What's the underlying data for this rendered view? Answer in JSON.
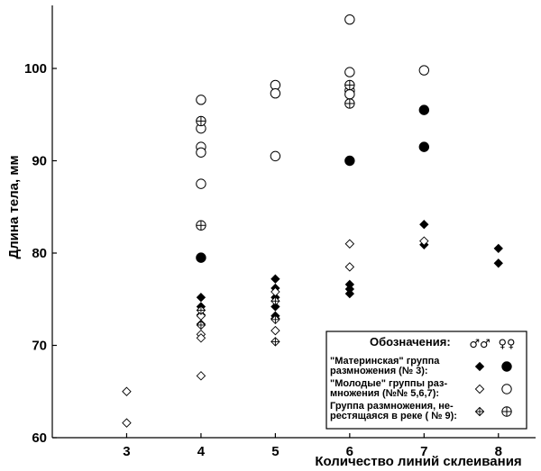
{
  "chart_data": {
    "type": "scatter",
    "title": "",
    "xlabel": "Количество линий склеивания",
    "ylabel": "Длина тела, мм",
    "xlim": [
      2,
      8.5
    ],
    "ylim": [
      60,
      106
    ],
    "xticks": [
      3,
      4,
      5,
      6,
      7,
      8
    ],
    "yticks": [
      60,
      70,
      80,
      90,
      100
    ],
    "grid": false,
    "legend": {
      "placement": "bottom-right",
      "title": "Обозначения:",
      "male_symbol": "♂♂",
      "female_symbol": "♀♀",
      "entries": [
        {
          "lines": [
            "\"Материнская\" группа",
            "размножения (№ 3):"
          ]
        },
        {
          "lines": [
            "\"Молодые\" группы раз-",
            "множения (№№ 5,6,7):"
          ]
        },
        {
          "lines": [
            "Группа размножения, не-",
            "рестящаяся в реке ( № 9):"
          ]
        }
      ]
    },
    "series": [
      {
        "marker": "filled-diamond",
        "points": [
          [
            4,
            75.2
          ],
          [
            4,
            74.2
          ],
          [
            4,
            73.3
          ],
          [
            4,
            72.3
          ],
          [
            5,
            77.2
          ],
          [
            5,
            76.2
          ],
          [
            5,
            75.2
          ],
          [
            5,
            74.2
          ],
          [
            5,
            73.2
          ],
          [
            6,
            76.6
          ],
          [
            6,
            76.1
          ],
          [
            6,
            75.6
          ],
          [
            7,
            83.1
          ],
          [
            7,
            80.9
          ],
          [
            8,
            80.5
          ],
          [
            8,
            78.9
          ]
        ]
      },
      {
        "marker": "filled-circle",
        "points": [
          [
            4,
            79.5
          ],
          [
            6,
            90
          ],
          [
            7,
            95.5
          ],
          [
            7,
            91.5
          ]
        ]
      },
      {
        "marker": "open-diamond",
        "points": [
          [
            3,
            65
          ],
          [
            3,
            61.6
          ],
          [
            4,
            73.2
          ],
          [
            4,
            71.2
          ],
          [
            4,
            70.8
          ],
          [
            4,
            66.7
          ],
          [
            5,
            75.8
          ],
          [
            5,
            72.9
          ],
          [
            5,
            71.6
          ],
          [
            6,
            81
          ],
          [
            6,
            78.5
          ],
          [
            7,
            81.3
          ]
        ]
      },
      {
        "marker": "open-circle",
        "points": [
          [
            4,
            96.6
          ],
          [
            4,
            93.5
          ],
          [
            4,
            91.5
          ],
          [
            4,
            90.9
          ],
          [
            4,
            87.5
          ],
          [
            5,
            98.2
          ],
          [
            5,
            97.3
          ],
          [
            5,
            90.5
          ],
          [
            6,
            105.3
          ],
          [
            6,
            99.6
          ],
          [
            6,
            97.6
          ],
          [
            6,
            97.2
          ],
          [
            7,
            99.8
          ]
        ]
      },
      {
        "marker": "crossed-diamond",
        "points": [
          [
            4,
            73.8
          ],
          [
            4,
            72.2
          ],
          [
            5,
            74.8
          ],
          [
            5,
            72.8
          ],
          [
            5,
            70.4
          ]
        ]
      },
      {
        "marker": "crossed-circle",
        "points": [
          [
            4,
            94.3
          ],
          [
            4,
            83
          ],
          [
            6,
            98.2
          ],
          [
            6,
            96.2
          ]
        ]
      }
    ]
  }
}
